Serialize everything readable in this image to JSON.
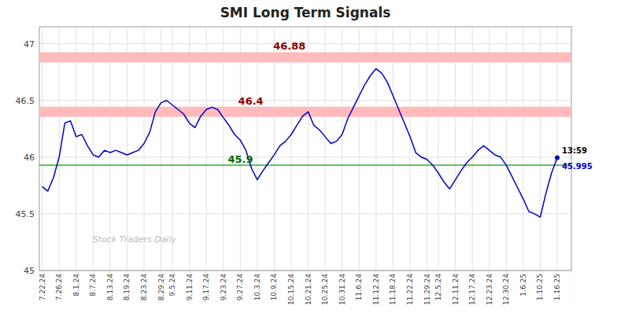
{
  "chart_data": {
    "type": "line",
    "title": "SMI Long Term Signals",
    "color": "#0000cc",
    "grid": true,
    "ylim": [
      45.0,
      47.15
    ],
    "yticks": [
      45.0,
      45.5,
      46.0,
      46.5,
      47.0
    ],
    "categories": [
      "7.22.24",
      null,
      null,
      "7.26.24",
      null,
      null,
      "8.1.24",
      null,
      null,
      "8.7.24",
      null,
      null,
      "8.13.24",
      null,
      null,
      "8.19.24",
      null,
      null,
      "8.23.24",
      null,
      null,
      "8.29.24",
      null,
      "9.5.24",
      null,
      null,
      "9.11.24",
      null,
      null,
      "9.17.24",
      null,
      null,
      "9.23.24",
      null,
      null,
      "9.27.24",
      null,
      null,
      "10.3.24",
      null,
      null,
      "10.9.24",
      null,
      null,
      "10.15.24",
      null,
      null,
      "10.21.24",
      null,
      null,
      "10.25.24",
      null,
      null,
      "10.31.24",
      null,
      null,
      "11.6.24",
      null,
      null,
      "11.12.24",
      null,
      null,
      "11.18.24",
      null,
      null,
      "11.22.24",
      null,
      null,
      "11.29.24",
      null,
      "12.5.24",
      null,
      null,
      "12.11.24",
      null,
      null,
      "12.17.24",
      null,
      null,
      "12.23.24",
      null,
      null,
      "12.30.24",
      null,
      null,
      "1.6.25",
      null,
      null,
      "1.10.25",
      null,
      null,
      "1.16.25"
    ],
    "values": [
      45.74,
      45.7,
      45.82,
      46.0,
      46.3,
      46.32,
      46.18,
      46.2,
      46.1,
      46.02,
      46.0,
      46.06,
      46.04,
      46.06,
      46.04,
      46.02,
      46.04,
      46.06,
      46.12,
      46.22,
      46.4,
      46.48,
      46.5,
      46.46,
      46.42,
      46.38,
      46.3,
      46.26,
      46.36,
      46.42,
      46.44,
      46.42,
      46.35,
      46.28,
      46.2,
      46.15,
      46.06,
      45.9,
      45.8,
      45.88,
      45.95,
      46.02,
      46.1,
      46.14,
      46.2,
      46.28,
      46.36,
      46.4,
      46.28,
      46.24,
      46.18,
      46.12,
      46.14,
      46.2,
      46.34,
      46.44,
      46.54,
      46.64,
      46.72,
      46.78,
      46.74,
      46.66,
      46.54,
      46.42,
      46.3,
      46.18,
      46.04,
      46.0,
      45.98,
      45.93,
      45.86,
      45.78,
      45.72,
      45.8,
      45.88,
      45.95,
      46.0,
      46.06,
      46.1,
      46.06,
      46.02,
      46.0,
      45.93,
      45.83,
      45.73,
      45.63,
      45.52,
      45.5,
      45.47,
      45.68,
      45.86,
      45.995
    ],
    "reference_lines": [
      {
        "kind": "band",
        "value": 46.88,
        "half_height": 0.045,
        "color": "#ffbbbb",
        "label": "46.88",
        "label_color": "#8b0000"
      },
      {
        "kind": "band",
        "value": 46.4,
        "half_height": 0.045,
        "color": "#ffbbbb",
        "label": "46.4",
        "label_color": "#8b0000"
      },
      {
        "kind": "line",
        "value": 45.93,
        "color": "#33aa33",
        "label": "45.9",
        "label_color": "#006600"
      }
    ],
    "last_point": {
      "value": 45.995,
      "time": "13:59",
      "label": "45.995"
    },
    "watermark": "Stock Traders Daily"
  }
}
